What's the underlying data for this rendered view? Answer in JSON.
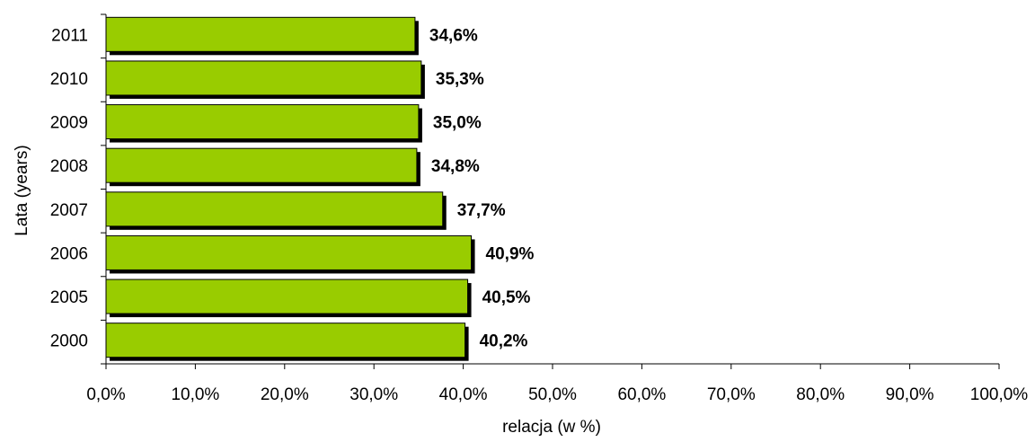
{
  "chart_data": {
    "type": "bar",
    "orientation": "horizontal",
    "categories": [
      "2011",
      "2010",
      "2009",
      "2008",
      "2007",
      "2006",
      "2005",
      "2000"
    ],
    "values": [
      34.6,
      35.3,
      35.0,
      34.8,
      37.7,
      40.9,
      40.5,
      40.2
    ],
    "value_labels": [
      "34,6%",
      "35,3%",
      "35,0%",
      "34,8%",
      "37,7%",
      "40,9%",
      "40,5%",
      "40,2%"
    ],
    "xlabel": "relacja (w %)",
    "ylabel": "Lata (years)",
    "xlim": [
      0,
      100
    ],
    "x_ticks": [
      0,
      10,
      20,
      30,
      40,
      50,
      60,
      70,
      80,
      90,
      100
    ],
    "x_tick_labels": [
      "0,0%",
      "10,0%",
      "20,0%",
      "30,0%",
      "40,0%",
      "50,0%",
      "60,0%",
      "70,0%",
      "80,0%",
      "90,0%",
      "100,0%"
    ],
    "grid": false,
    "legend": "none",
    "bar_color": "#99cc00",
    "bar_shadow_color": "#000000",
    "bar_border_color": "#000000"
  }
}
